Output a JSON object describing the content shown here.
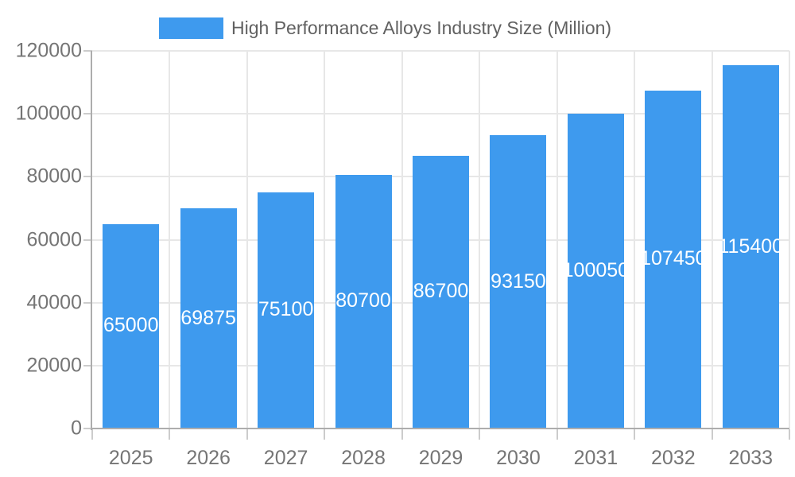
{
  "chart_data": {
    "type": "bar",
    "title": "High Performance Alloys Industry Size (Million)",
    "categories": [
      "2025",
      "2026",
      "2027",
      "2028",
      "2029",
      "2030",
      "2031",
      "2032",
      "2033"
    ],
    "series": [
      {
        "name": "High Performance Alloys Industry Size (Million)",
        "values": [
          65000,
          69875,
          75100,
          80700,
          86700,
          93150,
          100050,
          107450,
          115400
        ]
      }
    ],
    "bar_value_labels": [
      "65000",
      "69875",
      "75100",
      "80700",
      "86700",
      "93150",
      "100050",
      "107450",
      "115400"
    ],
    "xlabel": "",
    "ylabel": "",
    "ylim": [
      0,
      120000
    ],
    "yticks": [
      0,
      20000,
      40000,
      60000,
      80000,
      100000,
      120000
    ],
    "ytick_labels": [
      "0",
      "20000",
      "40000",
      "60000",
      "80000",
      "100000",
      "120000"
    ],
    "grid": true,
    "legend_position": "top",
    "colors": {
      "bar": "#3E9AEE",
      "bar_label_text": "#FFFFFF",
      "tick_label_text": "#757575",
      "legend_text": "#616161",
      "gridline": "#E7E7E7",
      "axis_line": "#ADADAD",
      "tick_mark": "#CCCCCC",
      "background": "#FFFFFF"
    }
  }
}
